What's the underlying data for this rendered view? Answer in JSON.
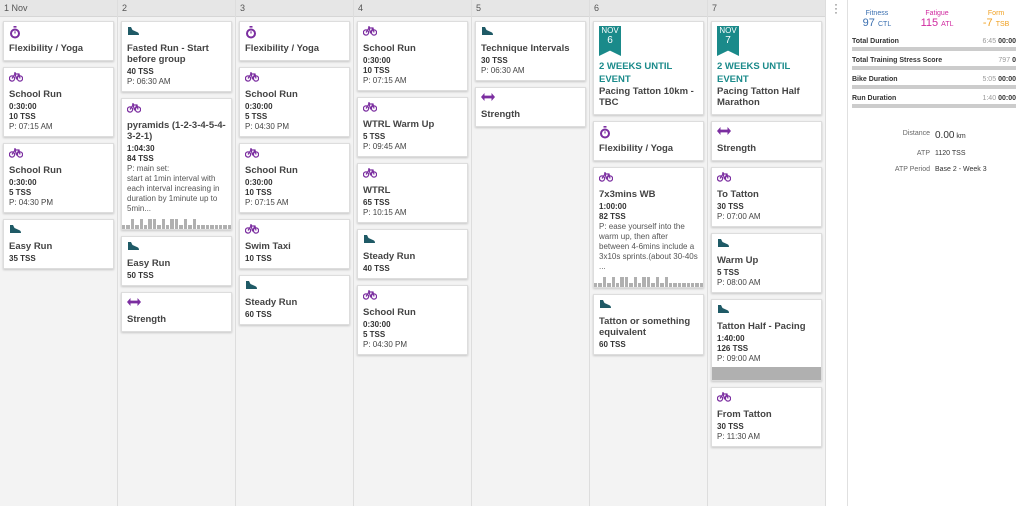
{
  "days": [
    {
      "label": "1 Nov",
      "workouts": [
        {
          "title": "Flexibility / Yoga"
        },
        {
          "title": "School Run",
          "duration": "0:30:00",
          "tss": "10 TSS",
          "time": "P: 07:15 AM"
        },
        {
          "title": "School Run",
          "duration": "0:30:00",
          "tss": "5 TSS",
          "time": "P: 04:30 PM"
        },
        {
          "title": "Easy Run",
          "tss": "35 TSS"
        }
      ]
    },
    {
      "label": "2",
      "workouts": [
        {
          "title": "Fasted Run - Start before group",
          "tss": "40 TSS",
          "time": "P: 06:30 AM"
        },
        {
          "title": "pyramids (1-2-3-4-5-4-3-2-1)",
          "duration": "1:04:30",
          "tss": "84 TSS",
          "note": "P: main set:\nstart at 1min interval with each interval increasing in duration by 1minute up to 5min..."
        },
        {
          "title": "Easy Run",
          "tss": "50 TSS"
        },
        {
          "title": "Strength"
        }
      ]
    },
    {
      "label": "3",
      "workouts": [
        {
          "title": "Flexibility / Yoga"
        },
        {
          "title": "School Run",
          "duration": "0:30:00",
          "tss": "5 TSS",
          "time": "P: 04:30 PM"
        },
        {
          "title": "School Run",
          "duration": "0:30:00",
          "tss": "10 TSS",
          "time": "P: 07:15 AM"
        },
        {
          "title": "Swim Taxi",
          "tss": "10 TSS"
        },
        {
          "title": "Steady Run",
          "tss": "60 TSS"
        }
      ]
    },
    {
      "label": "4",
      "workouts": [
        {
          "title": "School Run",
          "duration": "0:30:00",
          "tss": "10 TSS",
          "time": "P: 07:15 AM"
        },
        {
          "title": "WTRL Warm Up",
          "tss": "5 TSS",
          "time": "P: 09:45 AM"
        },
        {
          "title": "WTRL",
          "tss": "65 TSS",
          "time": "P: 10:15 AM"
        },
        {
          "title": "Steady Run",
          "tss": "40 TSS"
        },
        {
          "title": "School Run",
          "duration": "0:30:00",
          "tss": "5 TSS",
          "time": "P: 04:30 PM"
        }
      ]
    },
    {
      "label": "5",
      "workouts": [
        {
          "title": "Technique Intervals",
          "tss": "30 TSS",
          "time": "P: 06:30 AM"
        },
        {
          "title": "Strength"
        }
      ]
    },
    {
      "label": "6",
      "workouts": [
        {
          "badge_month": "NOV",
          "badge_day": "6",
          "subtitle": "2 WEEKS UNTIL EVENT",
          "title": "Pacing Tatton 10km - TBC"
        },
        {
          "title": "Flexibility / Yoga"
        },
        {
          "title": "7x3mins WB",
          "duration": "1:00:00",
          "tss": "82 TSS",
          "note": "P: ease yourself into the warm up, then after between 4-6mins include a 3x10s sprints.(about 30-40s ..."
        },
        {
          "title": "Tatton or something equivalent",
          "tss": "60 TSS"
        }
      ]
    },
    {
      "label": "7",
      "workouts": [
        {
          "badge_month": "NOV",
          "badge_day": "7",
          "subtitle": "2 WEEKS UNTIL EVENT",
          "title": "Pacing Tatton Half Marathon"
        },
        {
          "title": "Strength"
        },
        {
          "title": "To Tatton",
          "tss": "30 TSS",
          "time": "P: 07:00 AM"
        },
        {
          "title": "Warm Up",
          "tss": "5 TSS",
          "time": "P: 08:00 AM"
        },
        {
          "title": "Tatton Half - Pacing",
          "duration": "1:40:00",
          "tss": "126 TSS",
          "time": "P: 09:00 AM"
        },
        {
          "title": "From Tatton",
          "tss": "30 TSS",
          "time": "P: 11:30 AM"
        }
      ]
    }
  ],
  "summary": {
    "metrics": [
      {
        "label": "Fitness",
        "value": "97",
        "unit": "CTL"
      },
      {
        "label": "Fatigue",
        "value": "115",
        "unit": "ATL"
      },
      {
        "label": "Form",
        "value": "-7",
        "unit": "TSB"
      }
    ],
    "rows": [
      {
        "label": "Total Duration",
        "planned": "6:45",
        "done": "00:00"
      },
      {
        "label": "Total Training Stress Score",
        "planned": "797",
        "done": "0"
      },
      {
        "label": "Bike Duration",
        "planned": "5:05",
        "done": "00:00"
      },
      {
        "label": "Run Duration",
        "planned": "1:40",
        "done": "00:00"
      }
    ],
    "distance_label": "Distance",
    "distance_value": "0.00",
    "distance_unit": "km",
    "atp_label": "ATP",
    "atp_value": "1120 TSS",
    "period_label": "ATP Period",
    "period_value": "Base 2 - Week 3"
  }
}
